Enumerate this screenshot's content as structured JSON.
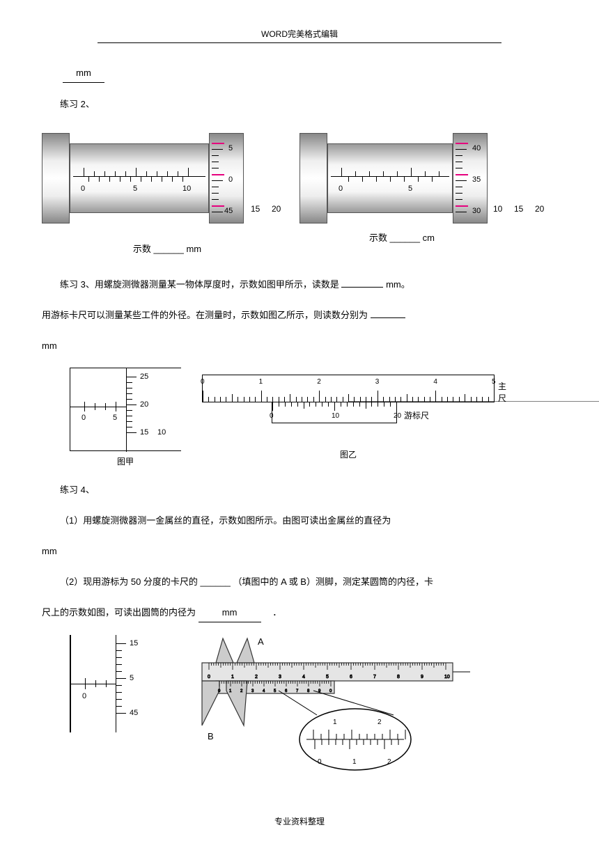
{
  "header": "WORD完美格式编辑",
  "footer": "专业资料整理",
  "blank_mm": "mm",
  "ex2": {
    "title": "练习 2、",
    "left_reading": "示数 ______ mm",
    "right_reading_pre": "示数 ______ ",
    "right_reading_unit": "cm",
    "left_barrel": {
      "labels": [
        "0",
        "5",
        "10"
      ],
      "thimble": [
        "5",
        "0",
        "45"
      ],
      "extra_nums": [
        "15",
        "20"
      ]
    },
    "right_barrel": {
      "labels": [
        "0",
        "5"
      ],
      "thimble": [
        "40",
        "35",
        "30"
      ],
      "extra_nums": [
        "10",
        "15",
        "20"
      ]
    }
  },
  "ex3": {
    "line1_a": "练习 3、用螺旋测微器测量某一物体厚度时，示数如图甲所示，读数是",
    "line1_b": "mm。",
    "line2_a": "用游标卡尺可以测量某些工件的外径。在测量时，示数如图乙所示，则读数分别为",
    "unit": "mm",
    "mic_labels": {
      "thimble": [
        "25",
        "20",
        "15"
      ],
      "main": [
        "0",
        "5"
      ],
      "extra": "10"
    },
    "vernier_main": [
      "0",
      "1",
      "2",
      "3",
      "4",
      "5"
    ],
    "vernier_sub": [
      "0",
      "10",
      "20"
    ],
    "main_label": "主尺",
    "sub_label": "游标尺",
    "cap_left": "图甲",
    "cap_right": "图乙"
  },
  "ex4": {
    "title": "练习 4、",
    "line1": "（1）用螺旋测微器测一金属丝的直径，示数如图所示。由图可读出金属丝的直径为",
    "unit": "mm",
    "line2_a": "（2）现用游标为 50 分度的卡尺的 ______ （填图中的 A 或 B）测脚，测定某圆筒的内径，卡",
    "line2_b": "尺上的示数如图，可读出圆筒的内径为",
    "line2_c": "mm",
    "mic_labels": {
      "thimble": [
        "15",
        "5",
        "45"
      ],
      "main": "0"
    },
    "caliper": {
      "A": "A",
      "B": "B",
      "zoom_top": [
        "1",
        "2"
      ],
      "zoom_bot": [
        "0",
        "1",
        "2"
      ],
      "main_ticks": [
        "0",
        "1",
        "2",
        "3",
        "4",
        "5",
        "6",
        "7",
        "8",
        "9",
        "10"
      ],
      "vernier_ticks": [
        "0",
        "1",
        "2",
        "3",
        "4",
        "5",
        "6",
        "7",
        "8",
        "9",
        "0"
      ]
    }
  }
}
